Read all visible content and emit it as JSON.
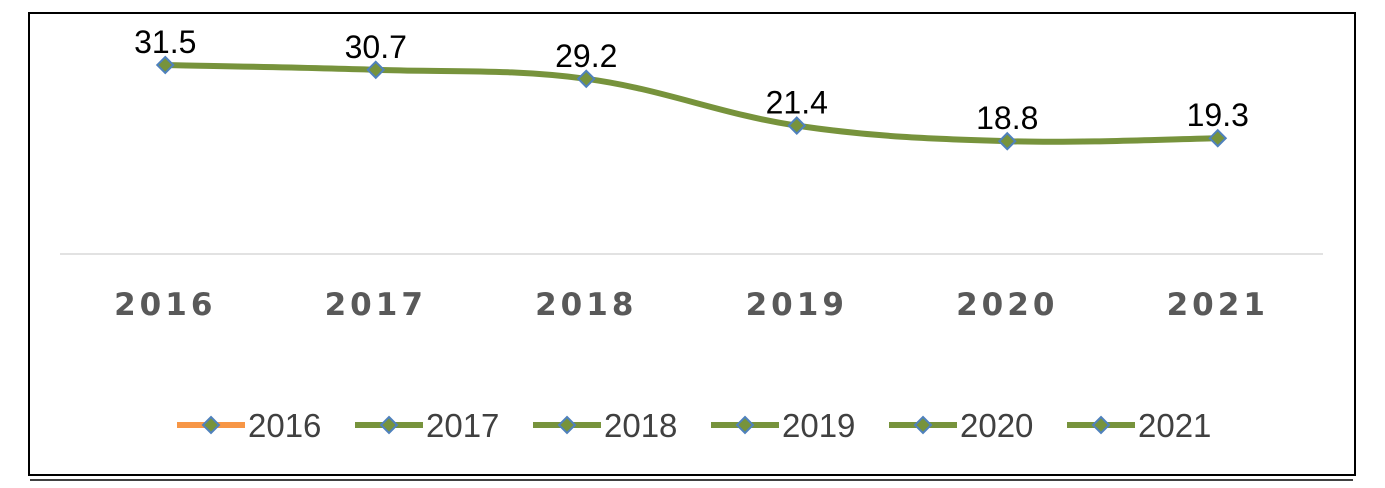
{
  "chart_data": {
    "type": "line",
    "title": "",
    "xlabel": "",
    "ylabel": "",
    "categories": [
      "2016",
      "2017",
      "2018",
      "2019",
      "2020",
      "2021"
    ],
    "values": [
      31.5,
      30.7,
      29.2,
      21.4,
      18.8,
      19.3
    ],
    "data_labels": [
      "31.5",
      "30.7",
      "29.2",
      "21.4",
      "18.8",
      "19.3"
    ],
    "ylim": [
      0,
      33
    ],
    "grid": false,
    "y_axis_visible": false,
    "legend_position": "bottom",
    "legend": [
      {
        "label": "2016",
        "color": "#f79646"
      },
      {
        "label": "2017",
        "color": "#77933c"
      },
      {
        "label": "2018",
        "color": "#77933c"
      },
      {
        "label": "2019",
        "color": "#77933c"
      },
      {
        "label": "2020",
        "color": "#77933c"
      },
      {
        "label": "2021",
        "color": "#77933c"
      }
    ],
    "line_color": "#77933c",
    "marker": "diamond",
    "marker_fill": "#77933c",
    "marker_stroke": "#4f81bd"
  }
}
